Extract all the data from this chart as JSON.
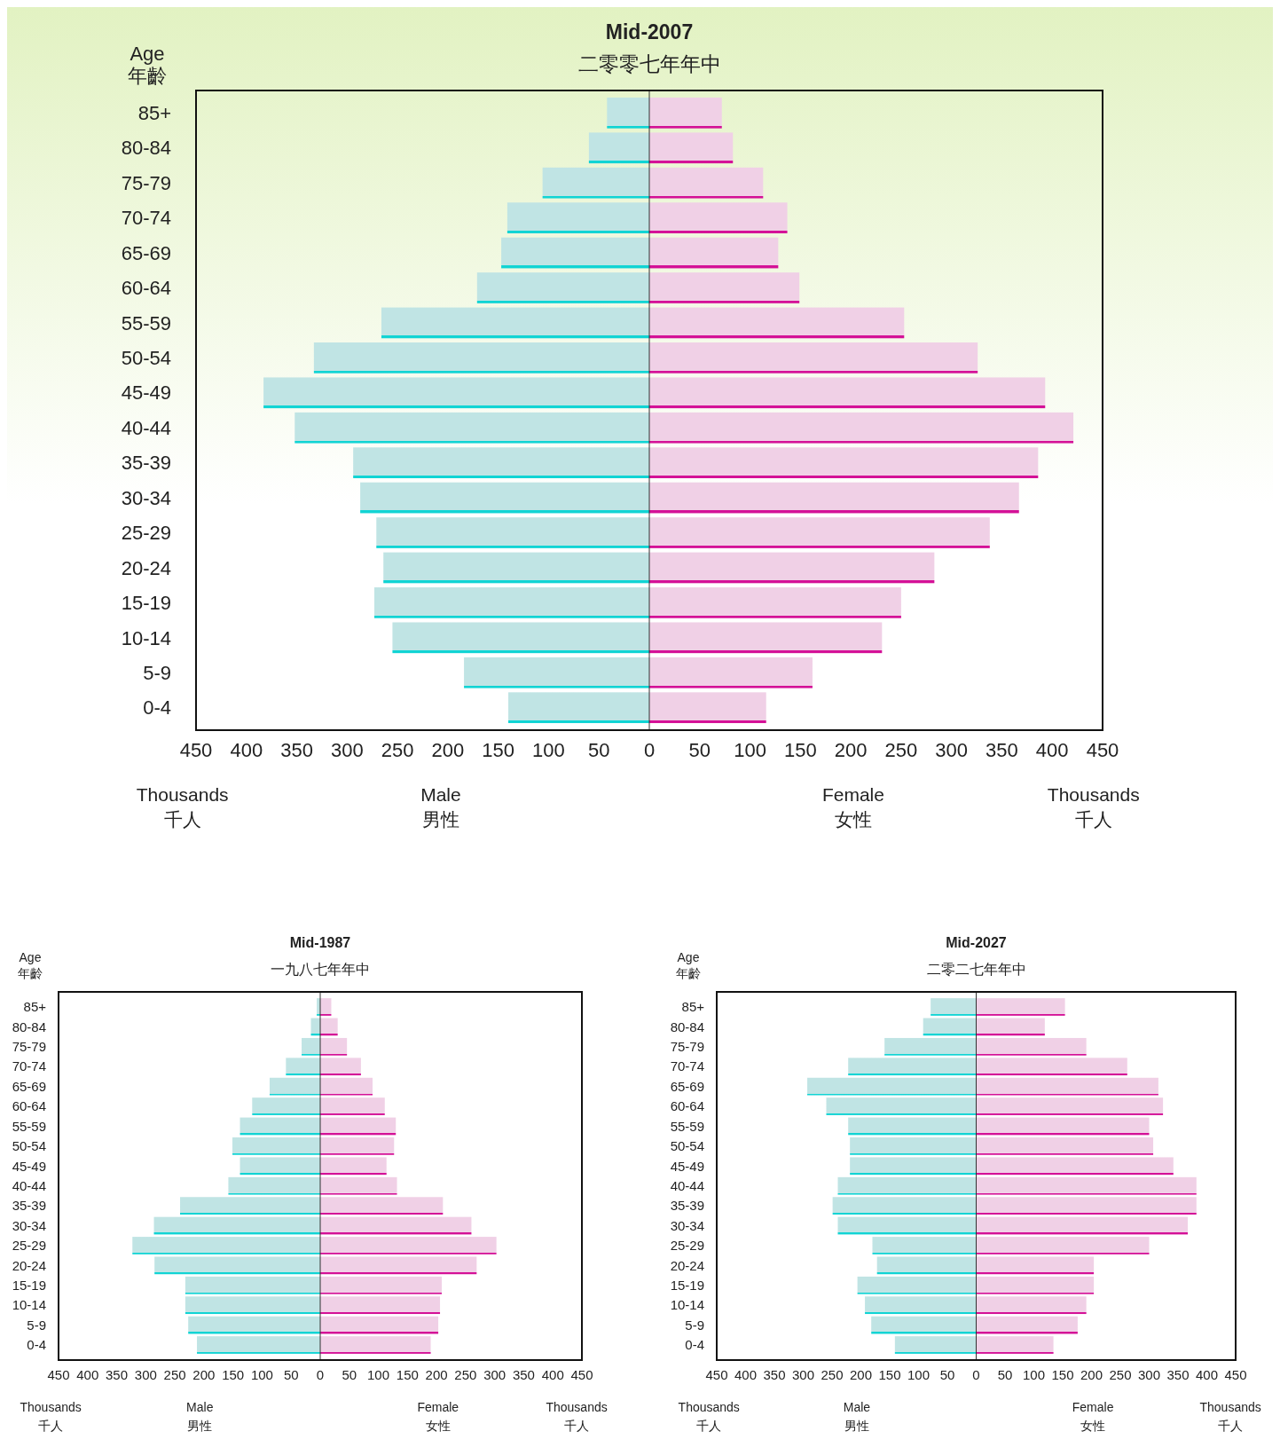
{
  "chart_data": [
    {
      "type": "bar",
      "orientation": "horizontal",
      "title": "Mid-2007",
      "subtitle": "二零零七年年中",
      "ylabel": "Age\n年齡",
      "categories": [
        "85+",
        "80-84",
        "75-79",
        "70-74",
        "65-69",
        "60-64",
        "55-59",
        "50-54",
        "45-49",
        "40-44",
        "35-39",
        "30-34",
        "25-29",
        "20-24",
        "15-19",
        "10-14",
        "5-9",
        "0-4"
      ],
      "series": [
        {
          "color": "#c0e4e4",
          "values": [
            -42,
            -60,
            -106,
            -141,
            -147,
            -171,
            -266,
            -333,
            -383,
            -352,
            -294,
            -287,
            -271,
            -264,
            -273,
            -255,
            -184,
            -140
          ]
        },
        {
          "color": "#f0d0e6",
          "values": [
            72,
            83,
            113,
            137,
            128,
            149,
            253,
            326,
            393,
            421,
            386,
            367,
            338,
            283,
            250,
            231,
            162,
            116
          ]
        }
      ],
      "xlim": [
        -450,
        450
      ],
      "xticks": [
        {
          "value": -450,
          "label": "450"
        },
        {
          "value": -400,
          "label": "400"
        },
        {
          "value": -350,
          "label": "350"
        },
        {
          "value": -300,
          "label": "300"
        },
        {
          "value": -250,
          "label": "250"
        },
        {
          "value": -200,
          "label": "200"
        },
        {
          "value": -150,
          "label": "150"
        },
        {
          "value": -100,
          "label": "100"
        },
        {
          "value": -50,
          "label": "50"
        },
        0,
        50,
        100,
        150,
        200,
        250,
        300,
        350,
        400,
        450
      ],
      "grid": false,
      "stacked": true,
      "ref_lines": [
        {
          "axis": "x",
          "value": 0,
          "color": "#333333"
        }
      ],
      "annotations": [
        "Thousands\n千人",
        "Male\n男性",
        "Female\n女性",
        "Thousands\n千人"
      ]
    },
    {
      "type": "bar",
      "orientation": "horizontal",
      "title": "Mid-1987",
      "subtitle": "一九八七年年中",
      "ylabel": "Age\n年齡",
      "categories": [
        "85+",
        "80-84",
        "75-79",
        "70-74",
        "65-69",
        "60-64",
        "55-59",
        "50-54",
        "45-49",
        "40-44",
        "35-39",
        "30-34",
        "25-29",
        "20-24",
        "15-19",
        "10-14",
        "5-9",
        "0-4"
      ],
      "series": [
        {
          "color": "#c0e4e4",
          "values": [
            -6,
            -16,
            -32,
            -59,
            -87,
            -117,
            -138,
            -151,
            -138,
            -158,
            -241,
            -286,
            -323,
            -285,
            -232,
            -232,
            -227,
            -212
          ]
        },
        {
          "color": "#f0d0e6",
          "values": [
            19,
            30,
            46,
            70,
            90,
            111,
            130,
            127,
            114,
            132,
            211,
            260,
            303,
            269,
            209,
            206,
            203,
            190
          ]
        }
      ],
      "xlim": [
        -450,
        450
      ],
      "xticks": [
        {
          "value": -450,
          "label": "450"
        },
        {
          "value": -400,
          "label": "400"
        },
        {
          "value": -350,
          "label": "350"
        },
        {
          "value": -300,
          "label": "300"
        },
        {
          "value": -250,
          "label": "250"
        },
        {
          "value": -200,
          "label": "200"
        },
        {
          "value": -150,
          "label": "150"
        },
        {
          "value": -100,
          "label": "100"
        },
        {
          "value": -50,
          "label": "50"
        },
        0,
        50,
        100,
        150,
        200,
        250,
        300,
        350,
        400,
        450
      ],
      "grid": false,
      "stacked": true,
      "ref_lines": [
        {
          "axis": "x",
          "value": 0,
          "color": "#333333"
        }
      ],
      "annotations": [
        "Thousands\n千人",
        "Male\n男性",
        "Female\n女性",
        "Thousands\n千人"
      ]
    },
    {
      "type": "bar",
      "orientation": "horizontal",
      "title": "Mid-2027",
      "subtitle": "二零二七年年中",
      "ylabel": "Age\n年齡",
      "categories": [
        "85+",
        "80-84",
        "75-79",
        "70-74",
        "65-69",
        "60-64",
        "55-59",
        "50-54",
        "45-49",
        "40-44",
        "35-39",
        "30-34",
        "25-29",
        "20-24",
        "15-19",
        "10-14",
        "5-9",
        "0-4"
      ],
      "series": [
        {
          "color": "#c0e4e4",
          "values": [
            -79,
            -92,
            -159,
            -222,
            -293,
            -260,
            -222,
            -219,
            -219,
            -240,
            -249,
            -240,
            -180,
            -172,
            -206,
            -193,
            -182,
            -141
          ]
        },
        {
          "color": "#f0d0e6",
          "values": [
            154,
            119,
            191,
            262,
            316,
            324,
            300,
            307,
            342,
            382,
            382,
            367,
            300,
            204,
            204,
            191,
            176,
            134
          ]
        }
      ],
      "xlim": [
        -450,
        450
      ],
      "xticks": [
        {
          "value": -450,
          "label": "450"
        },
        {
          "value": -400,
          "label": "400"
        },
        {
          "value": -350,
          "label": "350"
        },
        {
          "value": -300,
          "label": "300"
        },
        {
          "value": -250,
          "label": "250"
        },
        {
          "value": -200,
          "label": "200"
        },
        {
          "value": -150,
          "label": "150"
        },
        {
          "value": -100,
          "label": "100"
        },
        {
          "value": -50,
          "label": "50"
        },
        0,
        50,
        100,
        150,
        200,
        250,
        300,
        350,
        400,
        450
      ],
      "grid": false,
      "stacked": true,
      "ref_lines": [
        {
          "axis": "x",
          "value": 0,
          "color": "#333333"
        }
      ],
      "annotations": [
        "Thousands\n千人",
        "Male\n男性",
        "Female\n女性",
        "Thousands\n千人"
      ]
    }
  ]
}
